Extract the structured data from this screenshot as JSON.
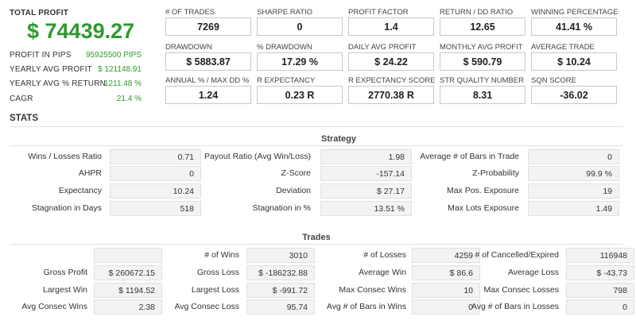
{
  "summary": {
    "total_profit_label": "TOTAL PROFIT",
    "total_profit_value": "$ 74439.27",
    "rows": [
      {
        "label": "PROFIT IN PIPS",
        "value": "95925500 PIPS"
      },
      {
        "label": "YEARLY AVG PROFIT",
        "value": "$ 121148.91"
      },
      {
        "label": "YEARLY AVG % RETURN",
        "value": "1211.48 %"
      },
      {
        "label": "CAGR",
        "value": "21.4 %"
      }
    ]
  },
  "metrics": [
    {
      "label": "# OF TRADES",
      "value": "7269"
    },
    {
      "label": "SHARPE RATIO",
      "value": "0"
    },
    {
      "label": "PROFIT FACTOR",
      "value": "1.4"
    },
    {
      "label": "RETURN / DD RATIO",
      "value": "12.65"
    },
    {
      "label": "WINNING PERCENTAGE",
      "value": "41.41 %"
    },
    {
      "label": "DRAWDOWN",
      "value": "$ 5883.87"
    },
    {
      "label": "% DRAWDOWN",
      "value": "17.29 %"
    },
    {
      "label": "DAILY AVG PROFIT",
      "value": "$ 24.22"
    },
    {
      "label": "MONTHLY AVG PROFIT",
      "value": "$ 590.79"
    },
    {
      "label": "AVERAGE TRADE",
      "value": "$ 10.24"
    },
    {
      "label": "ANNUAL % / MAX DD %",
      "value": "1.24"
    },
    {
      "label": "R EXPECTANCY",
      "value": "0.23 R"
    },
    {
      "label": "R EXPECTANCY SCORE",
      "value": "2770.38 R"
    },
    {
      "label": "STR QUALITY NUMBER",
      "value": "8.31"
    },
    {
      "label": "SQN SCORE",
      "value": "-36.02"
    }
  ],
  "stats_title": "STATS",
  "strategy": {
    "title": "Strategy",
    "rows": [
      [
        {
          "label": "Wins / Losses Ratio",
          "value": "0.71"
        },
        {
          "label": "Payout Ratio (Avg Win/Loss)",
          "value": "1.98"
        },
        {
          "label": "Average # of Bars in Trade",
          "value": "0"
        }
      ],
      [
        {
          "label": "AHPR",
          "value": "0"
        },
        {
          "label": "Z-Score",
          "value": "-157.14"
        },
        {
          "label": "Z-Probability",
          "value": "99.9 %"
        }
      ],
      [
        {
          "label": "Expectancy",
          "value": "10.24"
        },
        {
          "label": "Deviation",
          "value": "$ 27.17"
        },
        {
          "label": "Max Pos. Exposure",
          "value": "19"
        }
      ],
      [
        {
          "label": "Stagnation in Days",
          "value": "518"
        },
        {
          "label": "Stagnation in %",
          "value": "13.51 %"
        },
        {
          "label": "Max Lots Exposure",
          "value": "1.49"
        }
      ]
    ]
  },
  "trades": {
    "title": "Trades",
    "rows": [
      [
        {
          "label": "",
          "value": ""
        },
        {
          "label": "# of Wins",
          "value": "3010"
        },
        {
          "label": "# of Losses",
          "value": "4259"
        },
        {
          "label": "# of Cancelled/Expired",
          "value": "116948"
        }
      ],
      [
        {
          "label": "Gross Profit",
          "value": "$ 260672.15"
        },
        {
          "label": "Gross Loss",
          "value": "$ -186232.88"
        },
        {
          "label": "Average Win",
          "value": "$ 86.6"
        },
        {
          "label": "Average Loss",
          "value": "$ -43.73"
        }
      ],
      [
        {
          "label": "Largest Win",
          "value": "$ 1194.52"
        },
        {
          "label": "Largest Loss",
          "value": "$ -991.72"
        },
        {
          "label": "Max Consec Wins",
          "value": "10"
        },
        {
          "label": "Max Consec Losses",
          "value": "798"
        }
      ],
      [
        {
          "label": "Avg Consec Wins",
          "value": "2.38"
        },
        {
          "label": "Avg Consec Loss",
          "value": "95.74"
        },
        {
          "label": "Avg # of Bars in Wins",
          "value": "0"
        },
        {
          "label": "Avg # of Bars in Losses",
          "value": "0"
        }
      ]
    ]
  }
}
